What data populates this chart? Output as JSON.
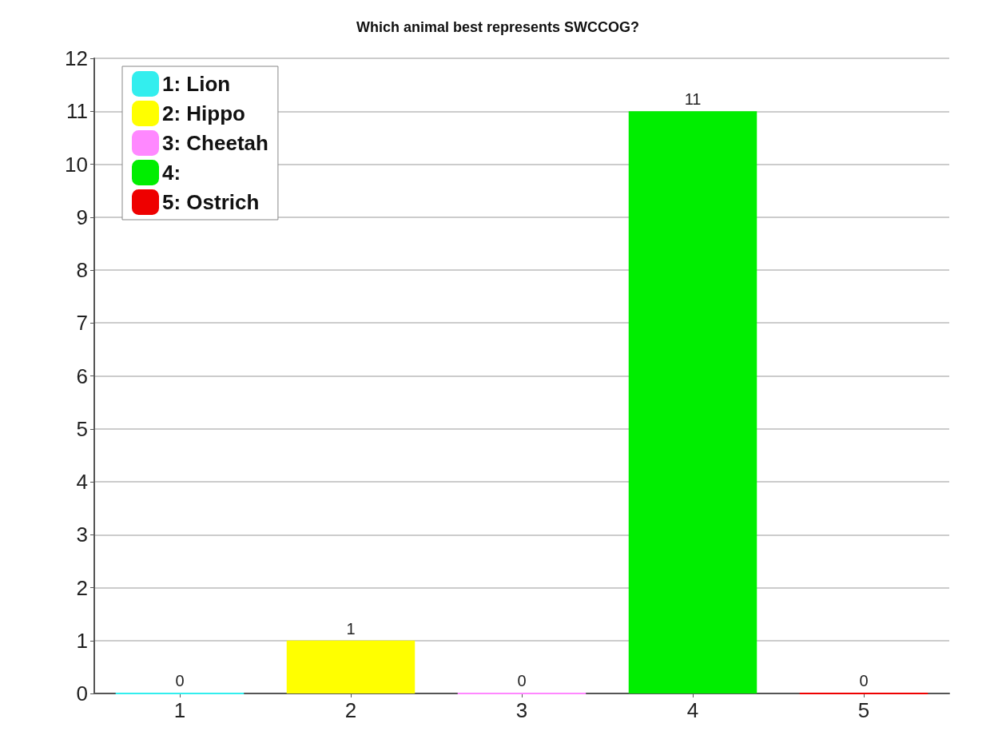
{
  "chart_data": {
    "type": "bar",
    "title": "Which animal best represents SWCCOG?",
    "categories": [
      "1",
      "2",
      "3",
      "4",
      "5"
    ],
    "series": [
      {
        "name": "1: Lion",
        "color": "#33eeee",
        "values": [
          0,
          null,
          null,
          null,
          null
        ]
      },
      {
        "name": "2: Hippo",
        "color": "#ffff00",
        "values": [
          null,
          1,
          null,
          null,
          null
        ]
      },
      {
        "name": "3: Cheetah",
        "color": "#ff88ff",
        "values": [
          null,
          null,
          0,
          null,
          null
        ]
      },
      {
        "name": "4:",
        "color": "#00ee00",
        "values": [
          null,
          null,
          null,
          11,
          null
        ]
      },
      {
        "name": "5: Ostrich",
        "color": "#ee0000",
        "values": [
          null,
          null,
          null,
          null,
          0
        ]
      }
    ],
    "ylim": [
      0,
      12
    ],
    "yticks": [
      0,
      1,
      2,
      3,
      4,
      5,
      6,
      7,
      8,
      9,
      10,
      11,
      12
    ],
    "grid": "y",
    "legend": "top left",
    "data_labels": true
  }
}
